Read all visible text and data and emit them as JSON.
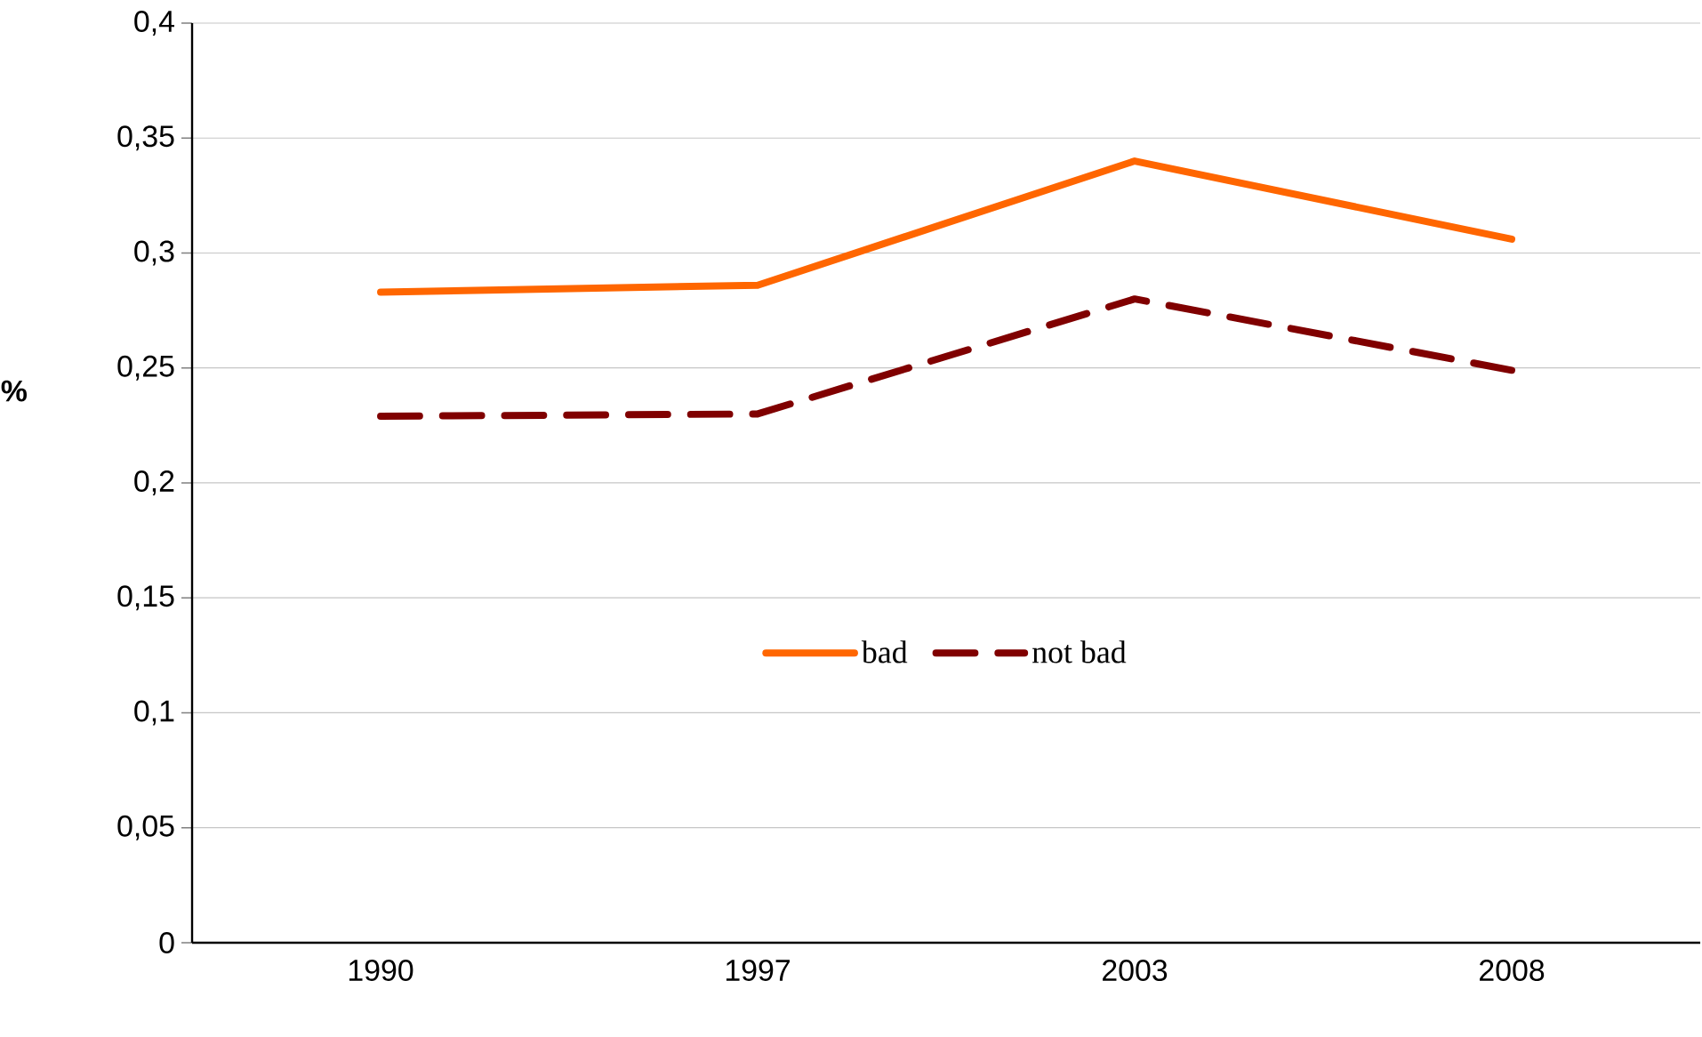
{
  "chart_data": {
    "type": "line",
    "ylabel": "%",
    "categories": [
      "1990",
      "1997",
      "2003",
      "2008"
    ],
    "series": [
      {
        "name": "bad",
        "color": "#ff6600",
        "values": [
          0.283,
          0.286,
          0.34,
          0.306
        ],
        "line_style": "solid"
      },
      {
        "name": "not bad",
        "color": "#800000",
        "values": [
          0.229,
          0.23,
          0.28,
          0.249
        ],
        "line_style": "dashed"
      }
    ],
    "ylim": [
      0,
      0.4
    ],
    "yticks": [
      {
        "value": 0,
        "label": "0"
      },
      {
        "value": 0.05,
        "label": "0,05"
      },
      {
        "value": 0.1,
        "label": "0,1"
      },
      {
        "value": 0.15,
        "label": "0,15"
      },
      {
        "value": 0.2,
        "label": "0,2"
      },
      {
        "value": 0.25,
        "label": "0,25"
      },
      {
        "value": 0.3,
        "label": "0,3"
      },
      {
        "value": 0.35,
        "label": "0,35"
      },
      {
        "value": 0.4,
        "label": "0,4"
      }
    ],
    "grid": "y",
    "legend": "center",
    "marker": "none"
  }
}
